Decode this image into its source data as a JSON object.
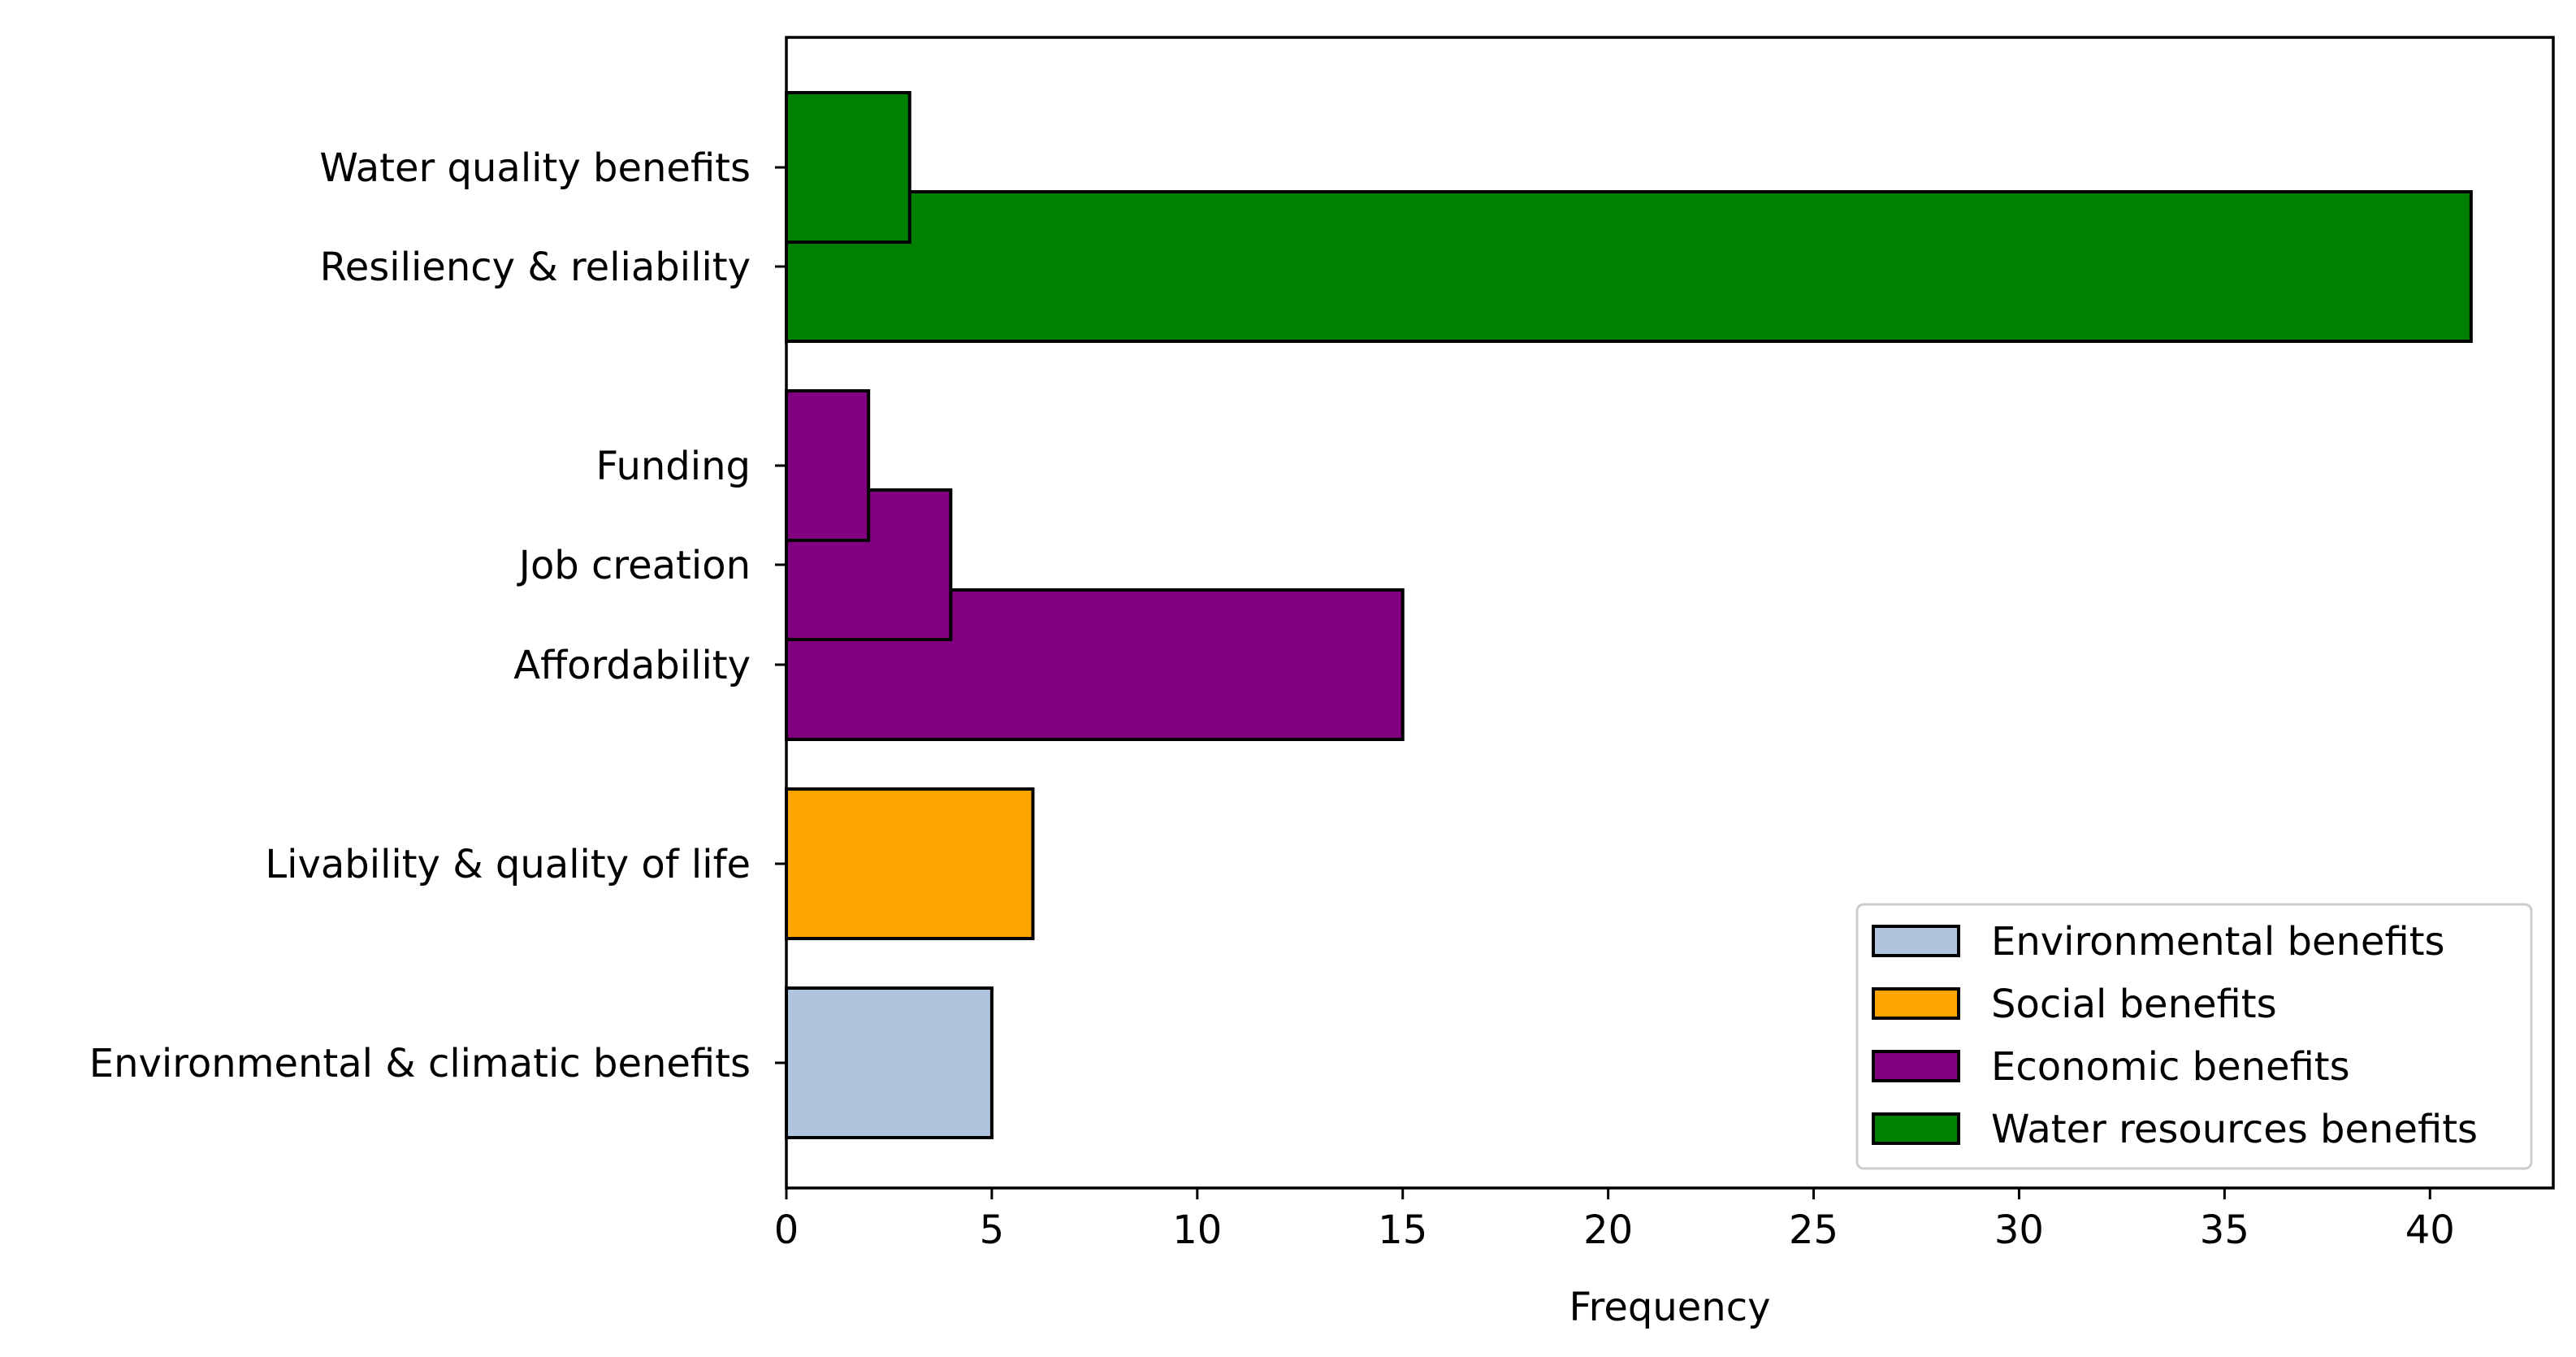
{
  "chart_data": {
    "type": "bar",
    "orientation": "horizontal",
    "title": "",
    "xlabel": "Frequency",
    "ylabel": "",
    "xlim": [
      0,
      43
    ],
    "x_ticks": [
      0,
      5,
      10,
      15,
      20,
      25,
      30,
      35,
      40
    ],
    "grid": false,
    "legend_position": "lower-right",
    "bars": [
      {
        "label": "Water quality benefits",
        "value": 3,
        "category": "Water resources benefits"
      },
      {
        "label": "Resiliency & reliability",
        "value": 41,
        "category": "Water resources benefits"
      },
      {
        "label": "Funding",
        "value": 2,
        "category": "Economic benefits"
      },
      {
        "label": "Job creation",
        "value": 4,
        "category": "Economic benefits"
      },
      {
        "label": "Affordability",
        "value": 15,
        "category": "Economic benefits"
      },
      {
        "label": "Livability & quality of life",
        "value": 6,
        "category": "Social benefits"
      },
      {
        "label": "Environmental & climatic benefits",
        "value": 5,
        "category": "Environmental benefits"
      }
    ],
    "legend": [
      {
        "name": "Environmental benefits",
        "color": "#b0c4de"
      },
      {
        "name": "Social benefits",
        "color": "#ffa500"
      },
      {
        "name": "Economic benefits",
        "color": "#800080"
      },
      {
        "name": "Water resources benefits",
        "color": "#008000"
      }
    ]
  }
}
